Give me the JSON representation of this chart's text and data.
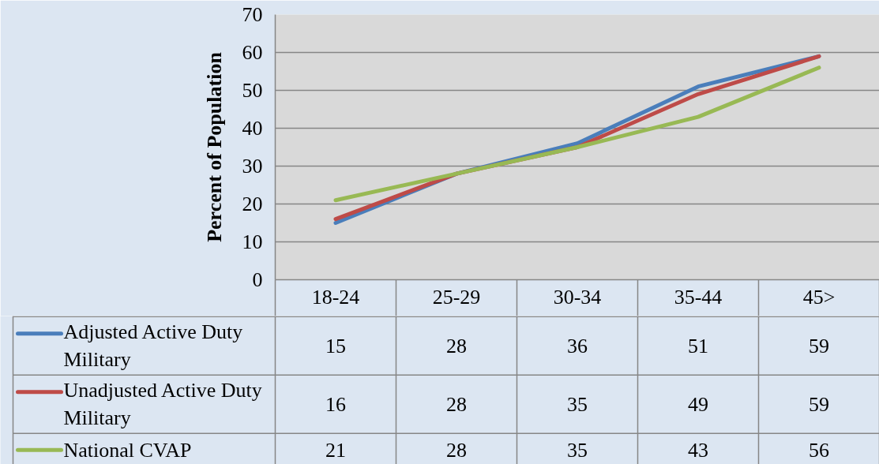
{
  "chart_data": {
    "type": "line",
    "ylabel": "Percent of Population",
    "categories": [
      "18-24",
      "25-29",
      "30-34",
      "35-44",
      "45>"
    ],
    "series": [
      {
        "name": "Adjusted Active Duty Military",
        "color": "#4a7ebb",
        "values": [
          15,
          28,
          36,
          51,
          59
        ]
      },
      {
        "name": "Unadjusted Active Duty Military",
        "color": "#be4b48",
        "values": [
          16,
          28,
          35,
          49,
          59
        ]
      },
      {
        "name": "National CVAP",
        "color": "#98b954",
        "values": [
          21,
          28,
          35,
          43,
          56
        ]
      }
    ],
    "ylim": [
      0,
      70
    ],
    "yticks": [
      0,
      10,
      20,
      30,
      40,
      50,
      60,
      70
    ],
    "grid": "y",
    "legend": "bottom",
    "data_labels": true
  }
}
